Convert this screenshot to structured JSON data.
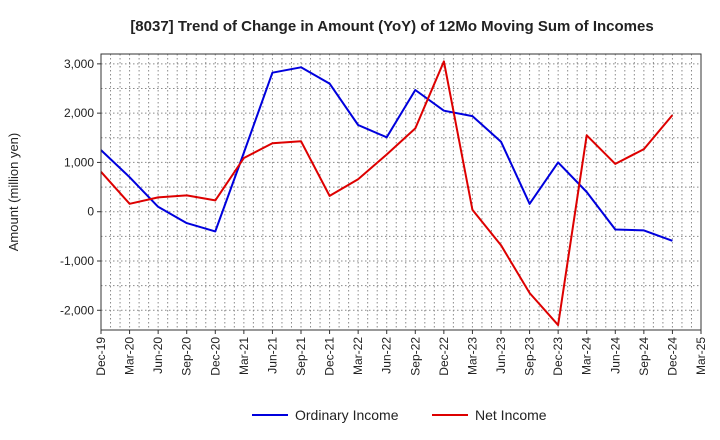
{
  "chart_data": {
    "type": "line",
    "title": "[8037]  Trend of Change in Amount (YoY) of 12Mo Moving Sum of Incomes",
    "ylabel": "Amount (million yen)",
    "xlabel": "",
    "ylim": [
      -2400,
      3200
    ],
    "yticks": [
      3000,
      2000,
      1000,
      0,
      -1000,
      -2000
    ],
    "ytick_labels": [
      "3,000",
      "2,000",
      "1,000",
      "0",
      "-1,000",
      "-2,000"
    ],
    "categories": [
      "Dec-19",
      "Mar-20",
      "Jun-20",
      "Sep-20",
      "Dec-20",
      "Mar-21",
      "Jun-21",
      "Sep-21",
      "Dec-21",
      "Mar-22",
      "Jun-22",
      "Sep-22",
      "Dec-22",
      "Mar-23",
      "Jun-23",
      "Sep-23",
      "Dec-23",
      "Mar-24",
      "Jun-24",
      "Sep-24",
      "Dec-24",
      "Mar-25"
    ],
    "grid": true,
    "legend_position": "bottom",
    "series": [
      {
        "name": "Ordinary Income",
        "color": "#0000dd",
        "values": [
          1250,
          700,
          100,
          -230,
          -400,
          1200,
          2820,
          2930,
          2600,
          1760,
          1510,
          2470,
          2050,
          1940,
          1420,
          160,
          1000,
          400,
          -360,
          -380,
          -590,
          null
        ]
      },
      {
        "name": "Net Income",
        "color": "#dd0000",
        "values": [
          810,
          160,
          290,
          330,
          230,
          1090,
          1390,
          1430,
          320,
          660,
          1160,
          1690,
          3050,
          40,
          -680,
          -1650,
          -2300,
          1550,
          970,
          1270,
          1960,
          null
        ]
      }
    ]
  }
}
